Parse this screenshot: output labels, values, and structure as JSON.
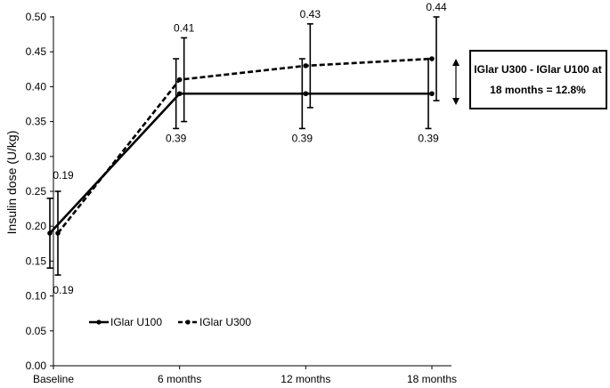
{
  "chart_data": {
    "type": "line",
    "title": "",
    "xlabel": "",
    "ylabel": "Insulin dose (U/kg)",
    "categories": [
      "Baseline",
      "6 months",
      "12 months",
      "18 months"
    ],
    "ylim": [
      0.0,
      0.5
    ],
    "yticks": [
      "0.00",
      "0.05",
      "0.10",
      "0.15",
      "0.20",
      "0.25",
      "0.30",
      "0.35",
      "0.40",
      "0.45",
      "0.50"
    ],
    "grid": false,
    "legend_position": "bottom-left",
    "series": [
      {
        "name": "IGlar U100",
        "style": "solid",
        "color": "#000000",
        "values": [
          0.19,
          0.39,
          0.39,
          0.39
        ],
        "error_low": [
          0.14,
          0.34,
          0.34,
          0.34
        ],
        "error_high": [
          0.24,
          0.44,
          0.44,
          0.44
        ],
        "data_labels": [
          "",
          "0.39",
          "0.39",
          "0.39"
        ]
      },
      {
        "name": "IGlar U300",
        "style": "dashed",
        "color": "#000000",
        "values": [
          0.19,
          0.41,
          0.43,
          0.44
        ],
        "error_low": [
          0.13,
          0.35,
          0.37,
          0.38
        ],
        "error_high": [
          0.25,
          0.47,
          0.49,
          0.5
        ],
        "data_labels": [
          "",
          "0.41",
          "0.43",
          "0.44"
        ]
      }
    ],
    "baseline_labels": [
      "0.19",
      "0.19"
    ],
    "annotation": {
      "line1": "IGlar U300 - IGlar U100 at",
      "line2": "18 months = 12.8%"
    }
  }
}
